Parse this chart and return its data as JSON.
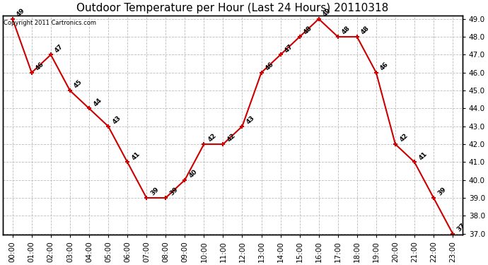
{
  "title": "Outdoor Temperature per Hour (Last 24 Hours) 20110318",
  "copyright_text": "Copyright 2011 Cartronics.com",
  "hours": [
    "00:00",
    "01:00",
    "02:00",
    "03:00",
    "04:00",
    "05:00",
    "06:00",
    "07:00",
    "08:00",
    "09:00",
    "10:00",
    "11:00",
    "12:00",
    "13:00",
    "14:00",
    "15:00",
    "16:00",
    "17:00",
    "18:00",
    "19:00",
    "20:00",
    "21:00",
    "22:00",
    "23:00"
  ],
  "values": [
    49,
    46,
    47,
    45,
    44,
    43,
    41,
    39,
    39,
    40,
    42,
    42,
    43,
    46,
    47,
    48,
    49,
    48,
    48,
    46,
    42,
    41,
    39,
    37
  ],
  "line_color": "#cc0000",
  "marker": "+",
  "ylim_min": 37.0,
  "ylim_max": 49.0,
  "ytick_step": 1.0,
  "bg_color": "#ffffff",
  "grid_color": "#bbbbbb",
  "title_fontsize": 11,
  "label_fontsize": 7.5,
  "annot_fontsize": 6.5
}
